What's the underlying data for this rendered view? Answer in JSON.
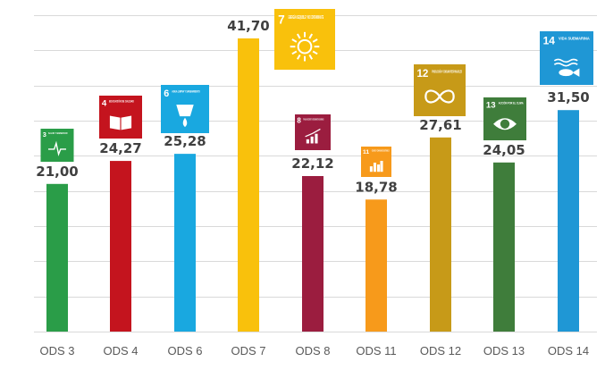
{
  "chart_data": {
    "type": "bar",
    "categories": [
      "ODS 3",
      "ODS 4",
      "ODS 6",
      "ODS 7",
      "ODS 8",
      "ODS 11",
      "ODS 12",
      "ODS 13",
      "ODS 14"
    ],
    "values": [
      21.0,
      24.27,
      25.28,
      41.7,
      22.12,
      18.78,
      27.61,
      24.05,
      31.5
    ],
    "value_labels": [
      "21,00",
      "24,27",
      "25,28",
      "41,70",
      "22,12",
      "18,78",
      "27,61",
      "24,05",
      "31,50"
    ],
    "colors": [
      "#2a9d48",
      "#c4141e",
      "#19a8e0",
      "#f9c10c",
      "#9b1d3f",
      "#f79a1b",
      "#c79a18",
      "#3f7d3b",
      "#1f97d5"
    ],
    "icons": [
      {
        "number": "3",
        "text": "SALUD Y BIENESTAR",
        "symbol": "heartbeat-icon"
      },
      {
        "number": "4",
        "text": "EDUCACIÓN DE CALIDAD",
        "symbol": "book-icon"
      },
      {
        "number": "6",
        "text": "AGUA LIMPIA Y SANEAMIENTO",
        "symbol": "water-drop-icon"
      },
      {
        "number": "7",
        "text": "ENERGÍA ASEQUIBLE Y NO CONTAMINANTE",
        "symbol": "sun-icon"
      },
      {
        "number": "8",
        "text": "TRABAJO DECENTE Y CRECIMIENTO ECONÓMICO",
        "symbol": "growth-chart-icon"
      },
      {
        "number": "11",
        "text": "CIUDADES Y COMUNIDADES SOSTENIBLES",
        "symbol": "city-icon"
      },
      {
        "number": "12",
        "text": "PRODUCCIÓN Y CONSUMO RESPONSABLES",
        "symbol": "infinity-icon"
      },
      {
        "number": "13",
        "text": "ACCIÓN POR EL CLIMA",
        "symbol": "eye-globe-icon"
      },
      {
        "number": "14",
        "text": "VIDA SUBMARINA",
        "symbol": "fish-icon"
      }
    ],
    "ylim": [
      0,
      45
    ],
    "grid": true,
    "title": "",
    "xlabel": "",
    "ylabel": ""
  }
}
